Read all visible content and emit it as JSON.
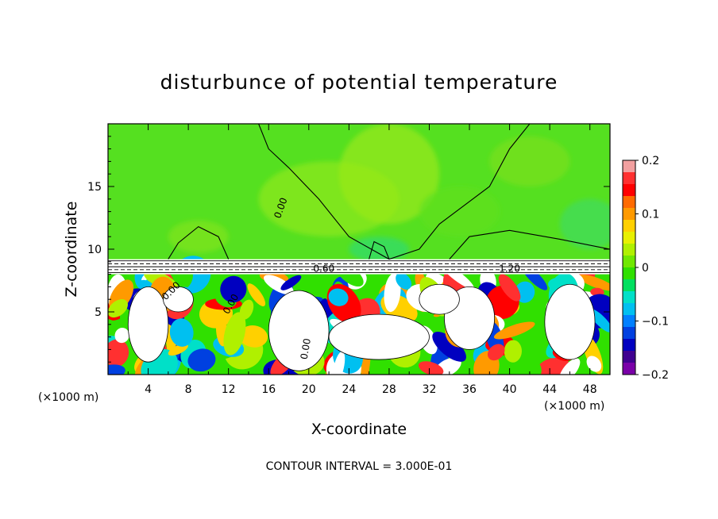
{
  "chart_data": {
    "type": "heatmap",
    "title": "disturbunce of potential temperature",
    "xlabel": "X-coordinate",
    "ylabel": "Z-coordinate",
    "x_unit_left": "(×1000 m)",
    "x_unit_right": "(×1000 m)",
    "xlim": [
      0,
      50
    ],
    "ylim": [
      0,
      20
    ],
    "x_ticks": [
      4,
      8,
      12,
      16,
      20,
      24,
      28,
      32,
      36,
      40,
      44,
      48
    ],
    "y_ticks": [
      5,
      10,
      15
    ],
    "colorbar": {
      "range": [
        -0.2,
        0.2
      ],
      "ticks": [
        0.2,
        0.1,
        0,
        -0.1,
        -0.2
      ],
      "tick_labels": [
        "0.2",
        "0.1",
        "0",
        "−0.1",
        "−0.2"
      ],
      "colors": [
        "#f2a0a0",
        "#ff3030",
        "#ff0000",
        "#ff6a00",
        "#ff9a00",
        "#ffd000",
        "#e8f000",
        "#b0f000",
        "#70e800",
        "#30e000",
        "#00e060",
        "#00e0c8",
        "#00c0f0",
        "#0080ff",
        "#0040e0",
        "#0000c0",
        "#400090",
        "#7a00a8"
      ]
    },
    "contour_labels": [
      "0.00",
      "0.00",
      "0.00",
      "0.00",
      "0.60",
      "1.20"
    ],
    "annotation": "CONTOUR INTERVAL = 3.000E-01",
    "background_color": "#55e020",
    "layer_top_value": 8
  }
}
